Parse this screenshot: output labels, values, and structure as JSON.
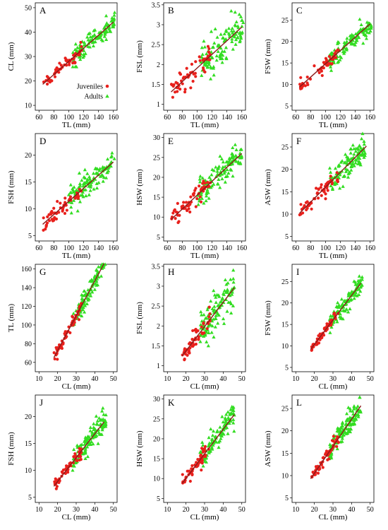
{
  "colors": {
    "juveniles": "#e8201c",
    "adults": "#33dd22",
    "fit": "#8b1a1a"
  },
  "legend": {
    "juveniles": "Juveniles",
    "adults": "Adults"
  },
  "chart_data": [
    {
      "letter": "A",
      "type": "scatter",
      "xlabel": "TL (mm)",
      "ylabel": "CL (mm)",
      "xlim": [
        55,
        165
      ],
      "ylim": [
        8,
        52
      ],
      "xticks": [
        60,
        80,
        100,
        120,
        140,
        160
      ],
      "yticks": [
        10,
        20,
        30,
        40,
        50
      ],
      "juveniles": {
        "x_range": [
          65,
          118
        ],
        "slope": 0.268,
        "intercept": 1.2,
        "spread": 1.3
      },
      "adults": {
        "x_range": [
          105,
          162
        ],
        "slope": 0.268,
        "intercept": 1.2,
        "spread": 2.0
      },
      "fit_line": {
        "x": [
          65,
          160
        ],
        "y": [
          18.6,
          44.1
        ]
      },
      "legend_shown": true
    },
    {
      "letter": "B",
      "type": "scatter",
      "xlabel": "TL (mm)",
      "ylabel": "FSL (mm)",
      "xlim": [
        55,
        165
      ],
      "ylim": [
        0.85,
        3.55
      ],
      "xticks": [
        60,
        80,
        100,
        120,
        140,
        160
      ],
      "yticks": [
        1.0,
        1.5,
        2.0,
        2.5,
        3.0,
        3.5
      ],
      "juveniles": {
        "x_range": [
          65,
          118
        ],
        "slope": 0.0171,
        "intercept": 0.2,
        "spread": 0.13
      },
      "adults": {
        "x_range": [
          105,
          162
        ],
        "slope": 0.0171,
        "intercept": 0.2,
        "spread": 0.22
      },
      "fit_line": {
        "x": [
          65,
          160
        ],
        "y": [
          1.31,
          2.94
        ]
      },
      "legend_shown": false
    },
    {
      "letter": "C",
      "type": "scatter",
      "xlabel": "TL (mm)",
      "ylabel": "FSW (mm)",
      "xlim": [
        55,
        165
      ],
      "ylim": [
        4,
        29
      ],
      "xticks": [
        60,
        80,
        100,
        120,
        140,
        160
      ],
      "yticks": [
        5,
        10,
        15,
        20,
        25
      ],
      "juveniles": {
        "x_range": [
          65,
          118
        ],
        "slope": 0.155,
        "intercept": -0.7,
        "spread": 0.8
      },
      "adults": {
        "x_range": [
          105,
          162
        ],
        "slope": 0.155,
        "intercept": -0.7,
        "spread": 1.2
      },
      "fit_line": {
        "x": [
          65,
          160
        ],
        "y": [
          9.4,
          24.1
        ]
      },
      "legend_shown": false
    },
    {
      "letter": "D",
      "type": "scatter",
      "xlabel": "TL (mm)",
      "ylabel": "FSH (mm)",
      "xlim": [
        55,
        165
      ],
      "ylim": [
        4,
        24
      ],
      "xticks": [
        60,
        80,
        100,
        120,
        140,
        160
      ],
      "yticks": [
        5,
        10,
        15,
        20
      ],
      "juveniles": {
        "x_range": [
          65,
          118
        ],
        "slope": 0.122,
        "intercept": -0.8,
        "spread": 0.8
      },
      "adults": {
        "x_range": [
          100,
          162
        ],
        "slope": 0.122,
        "intercept": -0.8,
        "spread": 1.2
      },
      "fit_line": {
        "x": [
          65,
          160
        ],
        "y": [
          7.1,
          18.7
        ]
      },
      "legend_shown": false
    },
    {
      "letter": "E",
      "type": "scatter",
      "xlabel": "TL (mm)",
      "ylabel": "HSW (mm)",
      "xlim": [
        55,
        165
      ],
      "ylim": [
        4,
        31
      ],
      "xticks": [
        60,
        80,
        100,
        120,
        140,
        160
      ],
      "yticks": [
        5,
        10,
        15,
        20,
        25,
        30
      ],
      "juveniles": {
        "x_range": [
          65,
          118
        ],
        "slope": 0.175,
        "intercept": -2.0,
        "spread": 1.1
      },
      "adults": {
        "x_range": [
          100,
          162
        ],
        "slope": 0.175,
        "intercept": -2.0,
        "spread": 1.6
      },
      "fit_line": {
        "x": [
          65,
          160
        ],
        "y": [
          9.4,
          26.0
        ]
      },
      "legend_shown": false
    },
    {
      "letter": "F",
      "type": "scatter",
      "xlabel": "TL (mm)",
      "ylabel": "ASW (mm)",
      "xlim": [
        55,
        165
      ],
      "ylim": [
        4,
        28
      ],
      "xticks": [
        60,
        80,
        100,
        120,
        140,
        160
      ],
      "yticks": [
        5,
        10,
        15,
        20,
        25
      ],
      "juveniles": {
        "x_range": [
          65,
          118
        ],
        "slope": 0.167,
        "intercept": -0.7,
        "spread": 1.0
      },
      "adults": {
        "x_range": [
          105,
          155
        ],
        "slope": 0.167,
        "intercept": -0.7,
        "spread": 1.5
      },
      "fit_line": {
        "x": [
          65,
          155
        ],
        "y": [
          10.2,
          25.2
        ]
      },
      "legend_shown": false
    },
    {
      "letter": "G",
      "type": "scatter",
      "xlabel": "CL (mm)",
      "ylabel": "TL (mm)",
      "xlim": [
        8,
        52
      ],
      "ylim": [
        50,
        165
      ],
      "xticks": [
        10,
        20,
        30,
        40,
        50
      ],
      "yticks": [
        60,
        80,
        100,
        120,
        140,
        160
      ],
      "juveniles": {
        "x_range": [
          18,
          33
        ],
        "slope": 3.73,
        "intercept": -2.0,
        "spread": 3.5
      },
      "adults": {
        "x_range": [
          28,
          46
        ],
        "slope": 3.73,
        "intercept": -2.0,
        "spread": 5.0
      },
      "fit_line": {
        "x": [
          18,
          45
        ],
        "y": [
          65.1,
          165.9
        ]
      },
      "legend_shown": false
    },
    {
      "letter": "H",
      "type": "scatter",
      "xlabel": "CL (mm)",
      "ylabel": "FSL (mm)",
      "xlim": [
        8,
        52
      ],
      "ylim": [
        0.85,
        3.55
      ],
      "xticks": [
        10,
        20,
        30,
        40,
        50
      ],
      "yticks": [
        1.0,
        1.5,
        2.0,
        2.5,
        3.0,
        3.5
      ],
      "juveniles": {
        "x_range": [
          18,
          33
        ],
        "slope": 0.0614,
        "intercept": 0.14,
        "spread": 0.12
      },
      "adults": {
        "x_range": [
          27,
          46
        ],
        "slope": 0.0614,
        "intercept": 0.14,
        "spread": 0.24
      },
      "fit_line": {
        "x": [
          18,
          46
        ],
        "y": [
          1.25,
          2.96
        ]
      },
      "legend_shown": false
    },
    {
      "letter": "I",
      "type": "scatter",
      "xlabel": "CL (mm)",
      "ylabel": "FSW (mm)",
      "xlim": [
        8,
        52
      ],
      "ylim": [
        4,
        29
      ],
      "xticks": [
        10,
        20,
        30,
        40,
        50
      ],
      "yticks": [
        5,
        10,
        15,
        20,
        25
      ],
      "juveniles": {
        "x_range": [
          18,
          33
        ],
        "slope": 0.57,
        "intercept": -1.1,
        "spread": 0.5
      },
      "adults": {
        "x_range": [
          28,
          46
        ],
        "slope": 0.57,
        "intercept": -1.1,
        "spread": 1.1
      },
      "fit_line": {
        "x": [
          18,
          45
        ],
        "y": [
          9.2,
          24.6
        ]
      },
      "legend_shown": false
    },
    {
      "letter": "J",
      "type": "scatter",
      "xlabel": "CL (mm)",
      "ylabel": "FSH (mm)",
      "xlim": [
        8,
        52
      ],
      "ylim": [
        4,
        24
      ],
      "xticks": [
        10,
        20,
        30,
        40,
        50
      ],
      "yticks": [
        5,
        10,
        15,
        20
      ],
      "juveniles": {
        "x_range": [
          18,
          33
        ],
        "slope": 0.445,
        "intercept": -1.0,
        "spread": 0.5
      },
      "adults": {
        "x_range": [
          28,
          46
        ],
        "slope": 0.445,
        "intercept": -1.0,
        "spread": 1.1
      },
      "fit_line": {
        "x": [
          18,
          45
        ],
        "y": [
          7.0,
          19.0
        ]
      },
      "legend_shown": false
    },
    {
      "letter": "K",
      "type": "scatter",
      "xlabel": "CL (mm)",
      "ylabel": "HSW (mm)",
      "xlim": [
        8,
        52
      ],
      "ylim": [
        4,
        31
      ],
      "xticks": [
        10,
        20,
        30,
        40,
        50
      ],
      "yticks": [
        5,
        10,
        15,
        20,
        25,
        30
      ],
      "juveniles": {
        "x_range": [
          18,
          33
        ],
        "slope": 0.62,
        "intercept": -2.4,
        "spread": 0.9
      },
      "adults": {
        "x_range": [
          27,
          46
        ],
        "slope": 0.62,
        "intercept": -2.4,
        "spread": 1.6
      },
      "fit_line": {
        "x": [
          18,
          46
        ],
        "y": [
          8.8,
          26.1
        ]
      },
      "legend_shown": false
    },
    {
      "letter": "L",
      "type": "scatter",
      "xlabel": "CL (mm)",
      "ylabel": "ASW (mm)",
      "xlim": [
        8,
        52
      ],
      "ylim": [
        4,
        28
      ],
      "xticks": [
        10,
        20,
        30,
        40,
        50
      ],
      "yticks": [
        5,
        10,
        15,
        20,
        25
      ],
      "juveniles": {
        "x_range": [
          18,
          33
        ],
        "slope": 0.605,
        "intercept": -1.6,
        "spread": 0.8
      },
      "adults": {
        "x_range": [
          28,
          45
        ],
        "slope": 0.605,
        "intercept": -1.6,
        "spread": 1.4
      },
      "fit_line": {
        "x": [
          18,
          45
        ],
        "y": [
          9.3,
          25.6
        ]
      },
      "legend_shown": false
    }
  ]
}
